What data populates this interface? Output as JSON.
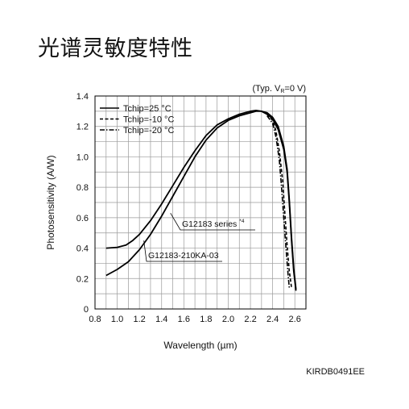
{
  "page": {
    "title": "光谱灵敏度特性",
    "figure_id": "KIRDB0491EE"
  },
  "chart_data": {
    "type": "line",
    "xlabel": "Wavelength (µm)",
    "ylabel": "Photosensitivity (A/W)",
    "condition": "(Typ. V",
    "condition_sub": "R",
    "condition_rest": "=0 V)",
    "xlim": [
      0.8,
      2.7
    ],
    "ylim": [
      0,
      1.4
    ],
    "xticks": [
      0.8,
      1.0,
      1.2,
      1.4,
      1.6,
      1.8,
      2.0,
      2.2,
      2.4,
      2.6
    ],
    "yticks": [
      0,
      0.2,
      0.4,
      0.6,
      0.8,
      1.0,
      1.2,
      1.4
    ],
    "xtick_labels": [
      "0.8",
      "1.0",
      "1.2",
      "1.4",
      "1.6",
      "1.8",
      "2.0",
      "2.2",
      "2.4",
      "2.6"
    ],
    "ytick_labels": [
      "0",
      "0.2",
      "0.4",
      "0.6",
      "0.8",
      "1.0",
      "1.2",
      "1.4"
    ],
    "grid": true,
    "legend_position": "top-left",
    "legend": [
      {
        "label": "Tchip=25 °C",
        "style": "solid"
      },
      {
        "label": "Tchip=-10 °C",
        "style": "dashed"
      },
      {
        "label": "Tchip=-20 °C",
        "style": "dashdot"
      }
    ],
    "annotations": [
      {
        "text": "G12183 series",
        "sup": "*4",
        "points_to": [
          1.48,
          0.63
        ]
      },
      {
        "text": "G12183-210KA-03",
        "points_to": [
          1.24,
          0.45
        ]
      }
    ],
    "series": [
      {
        "name": "G12183 series",
        "style": "solid",
        "x": [
          0.9,
          1.0,
          1.08,
          1.14,
          1.2,
          1.3,
          1.4,
          1.5,
          1.6,
          1.7,
          1.8,
          1.9,
          2.0,
          2.1,
          2.2,
          2.25,
          2.3,
          2.35,
          2.4,
          2.45,
          2.5,
          2.53,
          2.55,
          2.57,
          2.59,
          2.61
        ],
        "y": [
          0.4,
          0.405,
          0.42,
          0.45,
          0.49,
          0.58,
          0.69,
          0.81,
          0.93,
          1.04,
          1.14,
          1.21,
          1.25,
          1.28,
          1.3,
          1.305,
          1.3,
          1.28,
          1.25,
          1.18,
          1.05,
          0.9,
          0.7,
          0.45,
          0.25,
          0.12
        ]
      },
      {
        "name": "G12183-210KA-03",
        "style": "solid",
        "x": [
          0.9,
          1.0,
          1.1,
          1.2,
          1.3,
          1.4,
          1.5,
          1.6,
          1.7,
          1.8,
          1.9,
          2.0,
          2.1,
          2.2,
          2.25,
          2.3,
          2.35,
          2.4,
          2.45,
          2.5,
          2.53,
          2.55,
          2.57,
          2.59,
          2.61
        ],
        "y": [
          0.22,
          0.26,
          0.31,
          0.39,
          0.49,
          0.61,
          0.74,
          0.87,
          1.0,
          1.11,
          1.19,
          1.24,
          1.27,
          1.29,
          1.3,
          1.3,
          1.29,
          1.26,
          1.2,
          1.07,
          0.92,
          0.72,
          0.47,
          0.27,
          0.13
        ]
      },
      {
        "name": "Tchip=-10 °C",
        "style": "dashed",
        "x": [
          2.35,
          2.4,
          2.43,
          2.46,
          2.49,
          2.51,
          2.53,
          2.55,
          2.57
        ],
        "y": [
          1.28,
          1.24,
          1.17,
          1.04,
          0.85,
          0.63,
          0.42,
          0.25,
          0.14
        ]
      },
      {
        "name": "Tchip=-20 °C",
        "style": "dashdot",
        "x": [
          2.35,
          2.4,
          2.43,
          2.46,
          2.48,
          2.5,
          2.52,
          2.54,
          2.55
        ],
        "y": [
          1.27,
          1.22,
          1.13,
          0.98,
          0.8,
          0.6,
          0.4,
          0.22,
          0.14
        ]
      }
    ]
  }
}
